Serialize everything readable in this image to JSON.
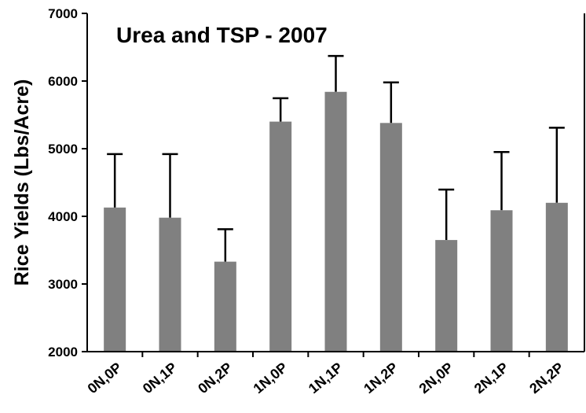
{
  "chart_data": {
    "type": "bar",
    "title": "Urea and TSP - 2007",
    "y_label": "Rice Yields (Lbs/Acre)",
    "categories": [
      "0N,0P",
      "0N,1P",
      "0N,2P",
      "1N,0P",
      "1N,1P",
      "1N,2P",
      "2N,0P",
      "2N,1P",
      "2N,2P"
    ],
    "values": [
      4130,
      3980,
      3330,
      5400,
      5840,
      5380,
      3650,
      4090,
      4200
    ],
    "errors": [
      790,
      940,
      480,
      345,
      530,
      600,
      745,
      860,
      1110
    ],
    "color": "#808080",
    "ylim": [
      2000,
      7000
    ],
    "yticks": [
      2000,
      3000,
      4000,
      5000,
      6000,
      7000
    ],
    "grid": false
  }
}
